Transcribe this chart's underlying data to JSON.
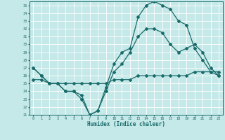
{
  "xlabel": "Humidex (Indice chaleur)",
  "bg_color": "#c5e8e8",
  "line_color": "#1a6b6b",
  "grid_color": "#ffffff",
  "xlim": [
    -0.5,
    23.5
  ],
  "ylim": [
    21,
    35.5
  ],
  "yticks": [
    21,
    22,
    23,
    24,
    25,
    26,
    27,
    28,
    29,
    30,
    31,
    32,
    33,
    34,
    35
  ],
  "xticks": [
    0,
    1,
    2,
    3,
    4,
    5,
    6,
    7,
    8,
    9,
    10,
    11,
    12,
    13,
    14,
    15,
    16,
    17,
    18,
    19,
    20,
    21,
    22,
    23
  ],
  "curve1_x": [
    0,
    1,
    2,
    3,
    4,
    5,
    6,
    7,
    8,
    9,
    10,
    11,
    12,
    13,
    14,
    15,
    16,
    17,
    18,
    19,
    20,
    21,
    22,
    23
  ],
  "curve1_y": [
    27,
    26,
    25,
    25,
    24,
    24,
    23,
    21,
    21.5,
    24.5,
    27.5,
    29,
    29.5,
    33.5,
    35,
    35.5,
    35,
    34.5,
    33,
    32.5,
    29.5,
    28,
    26.5,
    26
  ],
  "curve2_x": [
    0,
    1,
    2,
    3,
    4,
    5,
    6,
    7,
    8,
    9,
    10,
    11,
    12,
    13,
    14,
    15,
    16,
    17,
    18,
    19,
    20,
    21,
    22,
    23
  ],
  "curve2_y": [
    27,
    26,
    25,
    25,
    24,
    24,
    23.5,
    21,
    21.5,
    24,
    26.5,
    27.5,
    29,
    31,
    32,
    32,
    31.5,
    30,
    29,
    29.5,
    30,
    29,
    27,
    26
  ],
  "curve3_x": [
    0,
    1,
    2,
    3,
    4,
    5,
    6,
    7,
    8,
    9,
    10,
    11,
    12,
    13,
    14,
    15,
    16,
    17,
    18,
    19,
    20,
    21,
    22,
    23
  ],
  "curve3_y": [
    25.5,
    25.5,
    25,
    25,
    25,
    25,
    25,
    25,
    25,
    25,
    25.5,
    25.5,
    25.5,
    26,
    26,
    26,
    26,
    26,
    26,
    26,
    26.5,
    26.5,
    26.5,
    26.5
  ]
}
